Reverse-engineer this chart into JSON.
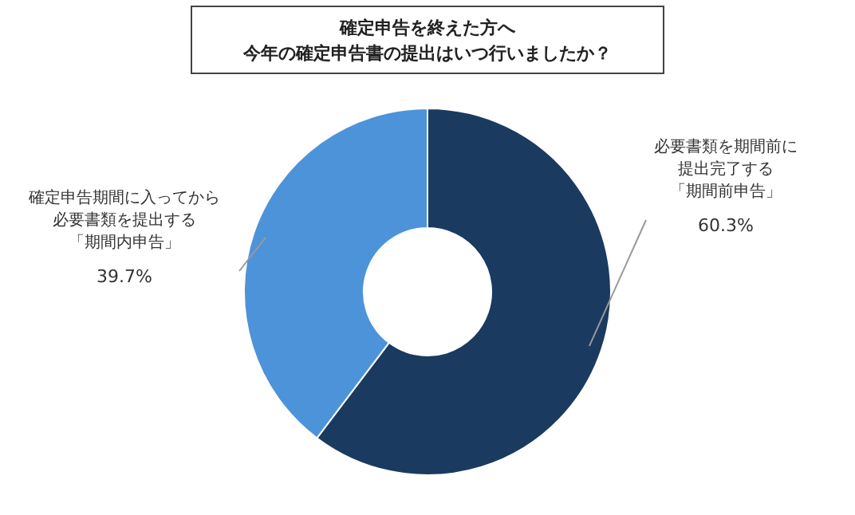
{
  "chart_data": {
    "type": "donut",
    "title": "確定申告を終えた方へ今年の確定申告書の提出はいつ行いましたか？",
    "categories": [
      "必要書類を期間前に提出完了する「期間前申告」",
      "確定申告期間に入ってから必要書類を提出する「期間内申告」"
    ],
    "values": [
      60.3,
      39.7
    ],
    "colors": [
      "#1b3a60",
      "#4d93d9"
    ],
    "value_labels": [
      "60.3%",
      "39.7%"
    ]
  }
}
